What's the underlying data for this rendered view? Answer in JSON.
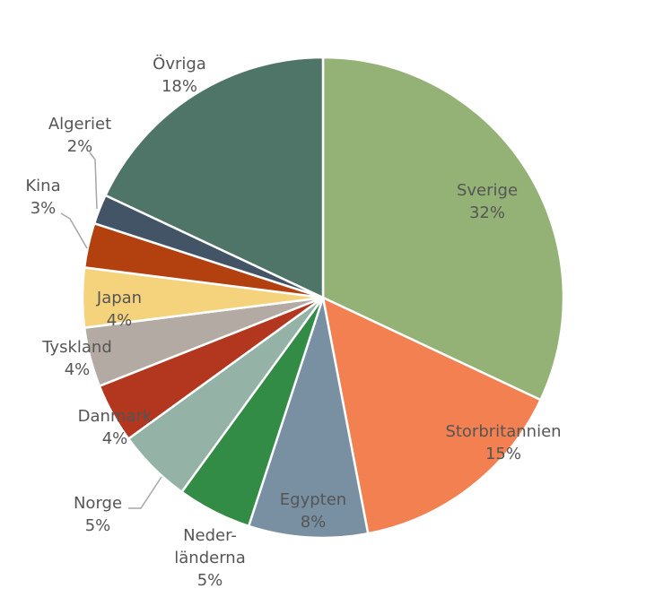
{
  "chart_data": {
    "type": "pie",
    "title": "",
    "slices": [
      {
        "label": "Sverige",
        "value": 32,
        "value_label": "32%",
        "color": "#94b276"
      },
      {
        "label": "Storbritannien",
        "value": 15,
        "value_label": "15%",
        "color": "#f28050"
      },
      {
        "label": "Egypten",
        "value": 8,
        "value_label": "8%",
        "color": "#7890a2"
      },
      {
        "label": "Neder-länderna",
        "value": 5,
        "value_label": "5%",
        "color": "#328c45"
      },
      {
        "label": "Norge",
        "value": 5,
        "value_label": "5%",
        "color": "#94b2a6"
      },
      {
        "label": "Danmark",
        "value": 4,
        "value_label": "4%",
        "color": "#b3361f"
      },
      {
        "label": "Tyskland",
        "value": 4,
        "value_label": "4%",
        "color": "#b3aba3"
      },
      {
        "label": "Japan",
        "value": 4,
        "value_label": "4%",
        "color": "#f5d37c"
      },
      {
        "label": "Kina",
        "value": 3,
        "value_label": "3%",
        "color": "#b3400f"
      },
      {
        "label": "Algeriet",
        "value": 2,
        "value_label": "2%",
        "color": "#435466"
      },
      {
        "label": "Övriga",
        "value": 18,
        "value_label": "18%",
        "color": "#4f7468"
      }
    ],
    "legend": "none",
    "data_labels": "category-and-percent"
  }
}
